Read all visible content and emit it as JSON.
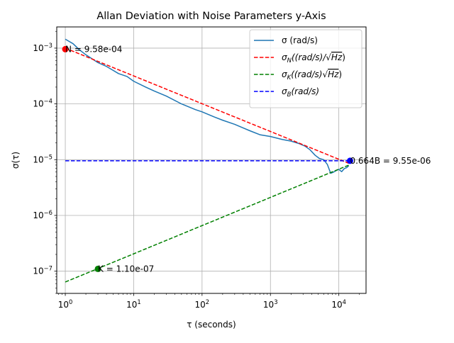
{
  "chart_data": {
    "type": "line",
    "title": "Allan Deviation with Noise Parameters y-Axis",
    "xlabel": "τ (seconds)",
    "ylabel": "σ(τ)",
    "x_scale": "log",
    "y_scale": "log",
    "xlim": [
      0.75,
      25000
    ],
    "ylim": [
      4e-08,
      0.0024
    ],
    "grid": true,
    "legend_position": "top-right",
    "x_ticks": [
      {
        "value": 1,
        "base": "10",
        "exp": "0"
      },
      {
        "value": 10,
        "base": "10",
        "exp": "1"
      },
      {
        "value": 100,
        "base": "10",
        "exp": "2"
      },
      {
        "value": 1000,
        "base": "10",
        "exp": "3"
      },
      {
        "value": 10000,
        "base": "10",
        "exp": "4"
      }
    ],
    "y_ticks": [
      {
        "value": 1e-07,
        "base": "10",
        "exp": "−7"
      },
      {
        "value": 1e-06,
        "base": "10",
        "exp": "−6"
      },
      {
        "value": 1e-05,
        "base": "10",
        "exp": "−5"
      },
      {
        "value": 0.0001,
        "base": "10",
        "exp": "−4"
      },
      {
        "value": 0.001,
        "base": "10",
        "exp": "−3"
      }
    ],
    "series": [
      {
        "name": "σ (rad/s)",
        "color": "#1f77b4",
        "dash": "solid",
        "x": [
          1,
          1.3,
          1.6,
          2,
          3,
          4,
          5,
          6,
          8,
          10,
          15,
          20,
          30,
          50,
          80,
          100,
          150,
          200,
          300,
          400,
          500,
          700,
          1000,
          1500,
          2000,
          2600,
          3200,
          3800,
          4500,
          5200,
          6000,
          6800,
          7600,
          8400,
          9200,
          10000,
          11000,
          12000,
          13000,
          14000
        ],
        "y": [
          0.00145,
          0.0012,
          0.00094,
          0.00076,
          0.00055,
          0.00047,
          0.0004,
          0.00035,
          0.00031,
          0.000255,
          0.0002,
          0.00017,
          0.000138,
          0.0001,
          7.9e-05,
          7.2e-05,
          5.85e-05,
          5.1e-05,
          4.3e-05,
          3.7e-05,
          3.3e-05,
          2.8e-05,
          2.6e-05,
          2.3e-05,
          2.15e-05,
          1.95e-05,
          1.75e-05,
          1.5e-05,
          1.2e-05,
          1.05e-05,
          1e-05,
          8.2e-06,
          5.7e-06,
          6e-06,
          6.4e-06,
          6.7e-06,
          6.1e-06,
          6.9e-06,
          7.2e-06,
          7.8e-06
        ]
      },
      {
        "name": "σN((rad/s)/√Hz)",
        "name_main": "σ",
        "name_sub": "N",
        "name_rest": "((rad/s)/",
        "name_sqrt": "Hz",
        "name_close": ")",
        "color": "#ff0000",
        "dash": "dashed",
        "x": [
          1,
          14000
        ],
        "y": [
          0.001,
          8.6e-06
        ]
      },
      {
        "name": "σK((rad/s)√Hz)",
        "name_main": "σ",
        "name_sub": "K",
        "name_rest": "((rad/s)",
        "name_sqrt": "Hz",
        "name_close": ")",
        "color": "#008000",
        "dash": "dashed",
        "x": [
          1,
          14000
        ],
        "y": [
          6.4e-08,
          8e-06
        ]
      },
      {
        "name": "σB(rad/s)",
        "name_main": "σ",
        "name_sub": "B",
        "name_rest": "(rad/s)",
        "name_sqrt": "",
        "name_close": "",
        "color": "#0000ff",
        "dash": "dashed",
        "x": [
          1,
          14000
        ],
        "y": [
          9.55e-06,
          9.55e-06
        ]
      }
    ],
    "annotations": [
      {
        "text": "N = 9.58e-04",
        "x": 1,
        "y": 0.000958,
        "color": "#ff0000"
      },
      {
        "text": "K = 1.10e-07",
        "x": 3,
        "y": 1.1e-07,
        "color": "#008000"
      },
      {
        "text": "0.664B = 9.55e-06",
        "x": 14600,
        "y": 9.55e-06,
        "color": "#0000ff"
      }
    ]
  }
}
